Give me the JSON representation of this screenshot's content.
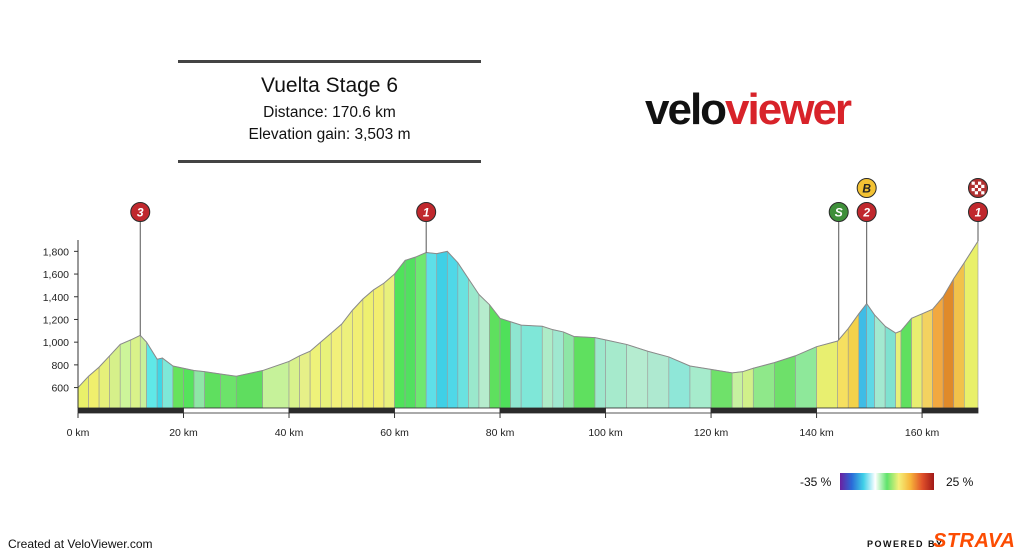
{
  "header": {
    "title": "Vuelta Stage 6",
    "distance": "Distance: 170.6 km",
    "elevation_gain": "Elevation gain: 3,503 m"
  },
  "brand": {
    "velo": "velo",
    "viewer": "viewer"
  },
  "legend": {
    "min_label": "-35 %",
    "max_label": "25 %"
  },
  "footer": {
    "credit": "Created at VeloViewer.com",
    "powered_by": "POWERED BY",
    "strava": "STRAVA"
  },
  "colors": {
    "background": "#ffffff",
    "brand_red": "#d8232a",
    "strava_orange": "#fc4c02",
    "marker_red": "#c0282d",
    "sprint_green": "#3f8f3a",
    "bonus_yellow": "#f3c233"
  },
  "chart_data": {
    "type": "area",
    "title": "",
    "xlabel": "",
    "ylabel": "",
    "x_unit": "km",
    "y_unit": "m",
    "xlim": [
      0,
      170.6
    ],
    "ylim": [
      420,
      1900
    ],
    "x_ticks": [
      0,
      20,
      40,
      60,
      80,
      100,
      120,
      140,
      160
    ],
    "x_tick_labels": [
      "0 km",
      "20 km",
      "40 km",
      "60 km",
      "80 km",
      "100 km",
      "120 km",
      "140 km",
      "160 km"
    ],
    "y_ticks": [
      600,
      800,
      1000,
      1200,
      1400,
      1600,
      1800
    ],
    "y_tick_labels": [
      "600",
      "800",
      "1,000",
      "1,200",
      "1,400",
      "1,600",
      "1,800"
    ],
    "grid": false,
    "profile": [
      {
        "x": 0,
        "y": 600
      },
      {
        "x": 2,
        "y": 700
      },
      {
        "x": 4,
        "y": 780
      },
      {
        "x": 6,
        "y": 880
      },
      {
        "x": 8,
        "y": 980
      },
      {
        "x": 10,
        "y": 1020
      },
      {
        "x": 11.8,
        "y": 1060
      },
      {
        "x": 13,
        "y": 1000
      },
      {
        "x": 15,
        "y": 850
      },
      {
        "x": 16,
        "y": 860
      },
      {
        "x": 18,
        "y": 790
      },
      {
        "x": 20,
        "y": 770
      },
      {
        "x": 22,
        "y": 750
      },
      {
        "x": 24,
        "y": 740
      },
      {
        "x": 27,
        "y": 720
      },
      {
        "x": 30,
        "y": 700
      },
      {
        "x": 35,
        "y": 750
      },
      {
        "x": 40,
        "y": 830
      },
      {
        "x": 42,
        "y": 880
      },
      {
        "x": 44,
        "y": 920
      },
      {
        "x": 46,
        "y": 1000
      },
      {
        "x": 48,
        "y": 1080
      },
      {
        "x": 50,
        "y": 1160
      },
      {
        "x": 52,
        "y": 1280
      },
      {
        "x": 54,
        "y": 1380
      },
      {
        "x": 56,
        "y": 1460
      },
      {
        "x": 58,
        "y": 1520
      },
      {
        "x": 60,
        "y": 1600
      },
      {
        "x": 62,
        "y": 1720
      },
      {
        "x": 64,
        "y": 1750
      },
      {
        "x": 66,
        "y": 1790
      },
      {
        "x": 68,
        "y": 1780
      },
      {
        "x": 70,
        "y": 1800
      },
      {
        "x": 72,
        "y": 1700
      },
      {
        "x": 74,
        "y": 1560
      },
      {
        "x": 76,
        "y": 1420
      },
      {
        "x": 78,
        "y": 1330
      },
      {
        "x": 80,
        "y": 1210
      },
      {
        "x": 82,
        "y": 1180
      },
      {
        "x": 84,
        "y": 1150
      },
      {
        "x": 88,
        "y": 1140
      },
      {
        "x": 90,
        "y": 1110
      },
      {
        "x": 92,
        "y": 1090
      },
      {
        "x": 94,
        "y": 1050
      },
      {
        "x": 98,
        "y": 1040
      },
      {
        "x": 100,
        "y": 1020
      },
      {
        "x": 104,
        "y": 980
      },
      {
        "x": 108,
        "y": 920
      },
      {
        "x": 112,
        "y": 870
      },
      {
        "x": 116,
        "y": 790
      },
      {
        "x": 120,
        "y": 760
      },
      {
        "x": 124,
        "y": 730
      },
      {
        "x": 126,
        "y": 740
      },
      {
        "x": 128,
        "y": 770
      },
      {
        "x": 132,
        "y": 820
      },
      {
        "x": 136,
        "y": 880
      },
      {
        "x": 140,
        "y": 960
      },
      {
        "x": 144,
        "y": 1010
      },
      {
        "x": 146,
        "y": 1120
      },
      {
        "x": 148,
        "y": 1250
      },
      {
        "x": 149.5,
        "y": 1340
      },
      {
        "x": 151,
        "y": 1240
      },
      {
        "x": 153,
        "y": 1140
      },
      {
        "x": 155,
        "y": 1080
      },
      {
        "x": 156,
        "y": 1100
      },
      {
        "x": 158,
        "y": 1210
      },
      {
        "x": 160,
        "y": 1250
      },
      {
        "x": 162,
        "y": 1290
      },
      {
        "x": 164,
        "y": 1400
      },
      {
        "x": 166,
        "y": 1560
      },
      {
        "x": 168,
        "y": 1700
      },
      {
        "x": 170.6,
        "y": 1890
      }
    ],
    "segment_colors": [
      "#e9f06a",
      "#f0ef6d",
      "#e6f07a",
      "#d6f08a",
      "#cdf59a",
      "#d9f28a",
      "#c8f09a",
      "#5fe8e8",
      "#3fd6e6",
      "#7de8d8",
      "#66e35c",
      "#55e35c",
      "#8ee6a6",
      "#5fdf5f",
      "#6ce36a",
      "#5fdd5f",
      "#c6f29a",
      "#d8f28c",
      "#e6f088",
      "#eef27a",
      "#e8f27a",
      "#f2f07a",
      "#edf07c",
      "#f1ef74",
      "#eef070",
      "#f2ee70",
      "#e8f07c",
      "#4fe35a",
      "#52e060",
      "#6ee870",
      "#5edfe8",
      "#3fd0e6",
      "#4fd8e8",
      "#6ae2e0",
      "#9ae8cc",
      "#b6eccd",
      "#5ee05e",
      "#4fe05a",
      "#8ee6d0",
      "#7fe7d8",
      "#aeecc8",
      "#9fe8d0",
      "#8ee6a6",
      "#5fe05f",
      "#9de8cc",
      "#a6eacc",
      "#b5ecd0",
      "#aee9d0",
      "#8fe7d8",
      "#a6ebcc",
      "#6fe16a",
      "#c7f1a0",
      "#d1f08a",
      "#8fe88a",
      "#6ee06a",
      "#8ee89a",
      "#e8ef70",
      "#f6e060",
      "#f3d24a",
      "#3fbce6",
      "#5fd8e6",
      "#a2e9d0",
      "#7fe2d0",
      "#e6f07a",
      "#5fe05f",
      "#e8ee70",
      "#f3d260",
      "#f2a840",
      "#e08a2a",
      "#f2c24a"
    ],
    "climbs": [
      {
        "label": "3",
        "km": 11.8,
        "type": "climb"
      },
      {
        "label": "1",
        "km": 66,
        "type": "climb"
      },
      {
        "label": "S",
        "km": 144.2,
        "type": "sprint"
      },
      {
        "label": "2",
        "km": 149.5,
        "type": "climb"
      },
      {
        "label": "B",
        "km": 149.5,
        "type": "bonus"
      },
      {
        "label": "1",
        "km": 170.6,
        "type": "climb"
      },
      {
        "label": "",
        "km": 170.6,
        "type": "finish"
      }
    ]
  }
}
